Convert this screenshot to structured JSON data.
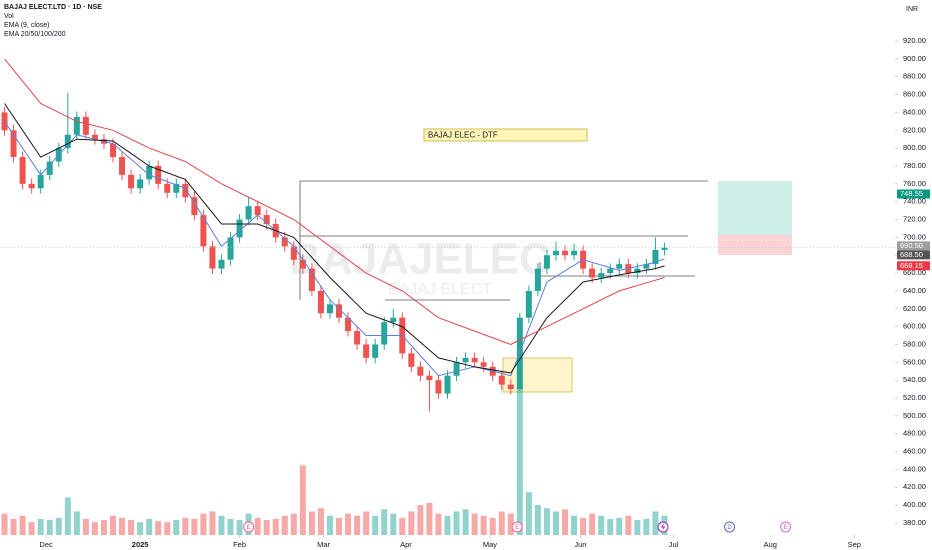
{
  "chart_data": {
    "type": "candlestick",
    "title": "BAJAJ ELECT.LTD · 1D · NSE",
    "indicators": [
      "Vol",
      "EMA (9, close)",
      "EMA 20/50/100/200"
    ],
    "currency": "INR",
    "annotation": "BAJAJ ELEC - DTF",
    "watermark": [
      "BAJAJELEC",
      "BAJAJ ELECT"
    ],
    "up_color": "#26a69a",
    "down_color": "#ef5350",
    "open": [
      840,
      820,
      790,
      760,
      755,
      770,
      785,
      800,
      815,
      835,
      815,
      810,
      805,
      790,
      770,
      755,
      765,
      780,
      760,
      750,
      760,
      745,
      725,
      690,
      665,
      675,
      700,
      720,
      735,
      725,
      715,
      700,
      690,
      675,
      665,
      640,
      615,
      625,
      610,
      595,
      580,
      565,
      580,
      605,
      610,
      570,
      555,
      545,
      540,
      525,
      545,
      560,
      565,
      560,
      555,
      545,
      535,
      530,
      610,
      640,
      665,
      680,
      685,
      680,
      685,
      665,
      655,
      660,
      665,
      670,
      660,
      665,
      670,
      686
    ],
    "high": [
      846,
      826,
      796,
      766,
      776,
      791,
      806,
      862,
      841,
      841,
      821,
      816,
      811,
      796,
      776,
      771,
      786,
      786,
      766,
      766,
      766,
      751,
      731,
      696,
      681,
      706,
      726,
      745,
      741,
      731,
      721,
      706,
      696,
      681,
      671,
      646,
      631,
      631,
      616,
      601,
      586,
      586,
      611,
      620,
      616,
      576,
      561,
      551,
      546,
      551,
      566,
      571,
      571,
      566,
      561,
      551,
      541,
      615,
      646,
      671,
      686,
      695,
      691,
      693,
      691,
      671,
      666,
      671,
      676,
      676,
      671,
      676,
      700,
      694
    ],
    "low": [
      814,
      784,
      754,
      749,
      749,
      764,
      779,
      794,
      809,
      809,
      804,
      799,
      784,
      764,
      749,
      749,
      759,
      754,
      744,
      744,
      739,
      719,
      684,
      659,
      659,
      669,
      694,
      714,
      719,
      709,
      694,
      684,
      669,
      659,
      634,
      609,
      609,
      604,
      589,
      574,
      559,
      559,
      574,
      599,
      564,
      549,
      539,
      505,
      519,
      519,
      539,
      554,
      554,
      549,
      539,
      529,
      524,
      528,
      604,
      634,
      659,
      674,
      674,
      674,
      659,
      649,
      649,
      654,
      659,
      654,
      654,
      659,
      664,
      680
    ],
    "close": [
      820,
      790,
      760,
      755,
      770,
      785,
      800,
      815,
      835,
      815,
      810,
      805,
      790,
      770,
      755,
      765,
      780,
      760,
      750,
      760,
      745,
      725,
      690,
      665,
      675,
      700,
      720,
      735,
      725,
      715,
      700,
      690,
      675,
      665,
      640,
      615,
      625,
      610,
      595,
      580,
      565,
      580,
      605,
      610,
      570,
      555,
      545,
      540,
      525,
      545,
      560,
      565,
      560,
      555,
      545,
      535,
      530,
      610,
      640,
      665,
      680,
      685,
      680,
      685,
      665,
      655,
      660,
      665,
      670,
      660,
      665,
      670,
      686,
      688.5
    ],
    "volume": [
      20,
      15,
      18,
      12,
      15,
      14,
      16,
      35,
      22,
      15,
      12,
      14,
      18,
      16,
      14,
      12,
      15,
      13,
      12,
      14,
      16,
      15,
      20,
      22,
      18,
      15,
      14,
      20,
      16,
      14,
      15,
      18,
      20,
      65,
      22,
      25,
      18,
      16,
      20,
      18,
      22,
      18,
      24,
      20,
      16,
      22,
      28,
      30,
      20,
      18,
      22,
      24,
      20,
      18,
      16,
      22,
      20,
      140,
      40,
      28,
      25,
      22,
      24,
      18,
      16,
      20,
      18,
      15,
      16,
      18,
      14,
      15,
      22,
      18
    ],
    "vlim": [
      0,
      500
    ],
    "series": [
      {
        "name": "EMA 9",
        "color": "#5b7fe0",
        "x": [
          0,
          4,
          8,
          12,
          16,
          20,
          24,
          28,
          32,
          36,
          40,
          44,
          48,
          52,
          56,
          60,
          64,
          68,
          72,
          73
        ],
        "values": [
          830,
          770,
          815,
          805,
          770,
          755,
          690,
          725,
          690,
          630,
          590,
          590,
          545,
          555,
          545,
          650,
          675,
          663,
          672,
          676
        ]
      },
      {
        "name": "EMA 20",
        "color": "#1a1a1a",
        "x": [
          0,
          4,
          8,
          12,
          16,
          20,
          24,
          28,
          32,
          36,
          40,
          44,
          48,
          52,
          56,
          60,
          64,
          68,
          72,
          73
        ],
        "values": [
          850,
          790,
          810,
          808,
          780,
          765,
          715,
          715,
          700,
          655,
          615,
          600,
          565,
          555,
          548,
          610,
          650,
          658,
          665,
          668
        ]
      },
      {
        "name": "EMA 50",
        "color": "#e0474c",
        "x": [
          0,
          4,
          8,
          12,
          16,
          20,
          24,
          28,
          32,
          36,
          40,
          44,
          48,
          52,
          56,
          60,
          64,
          68,
          72,
          73
        ],
        "values": [
          900,
          850,
          830,
          820,
          800,
          785,
          760,
          740,
          720,
          690,
          660,
          640,
          610,
          595,
          580,
          600,
          620,
          640,
          652,
          655
        ]
      }
    ],
    "price_labels": [
      {
        "value": 748.55,
        "label": "748.55",
        "color": "#089981"
      },
      {
        "value": 690.5,
        "label": "690.50",
        "color": "#9e9e9e"
      },
      {
        "value": 688.5,
        "label": "688.50",
        "color": "#555555"
      },
      {
        "value": 668.15,
        "label": "668.15",
        "color": "#f23645"
      }
    ],
    "events": [
      {
        "x": 27,
        "label": "E",
        "color": "#f06292"
      },
      {
        "x": 56.7,
        "label": "E",
        "color": "#f06292"
      },
      {
        "x": 80.2,
        "label": "D",
        "color": "#5c6bc0"
      },
      {
        "x": 86.4,
        "label": "E",
        "color": "#ce6bd6"
      }
    ],
    "xlim": [
      -0.5,
      98.5
    ],
    "xticks": [
      {
        "value": 4.6,
        "label": "Dec"
      },
      {
        "value": 15,
        "label": "2025"
      },
      {
        "value": 26,
        "label": "Feb"
      },
      {
        "value": 35.3,
        "label": "Mar"
      },
      {
        "value": 44.4,
        "label": "Apr"
      },
      {
        "value": 53.7,
        "label": "May"
      },
      {
        "value": 63.7,
        "label": "Jun"
      },
      {
        "value": 74,
        "label": "Jul"
      },
      {
        "value": 84.7,
        "label": "Aug"
      },
      {
        "value": 94,
        "label": "Sep"
      }
    ],
    "ylim": [
      366.5,
      966
    ],
    "yticks": [
      {
        "value": 380,
        "label": "380.00"
      },
      {
        "value": 400,
        "label": "400.00"
      },
      {
        "value": 420,
        "label": "420.00"
      },
      {
        "value": 440,
        "label": "440.00"
      },
      {
        "value": 460,
        "label": "460.00"
      },
      {
        "value": 480,
        "label": "480.00"
      },
      {
        "value": 500,
        "label": "500.00"
      },
      {
        "value": 520,
        "label": "520.00"
      },
      {
        "value": 540,
        "label": "540.00"
      },
      {
        "value": 560,
        "label": "560.00"
      },
      {
        "value": 580,
        "label": "580.00"
      },
      {
        "value": 600,
        "label": "600.00"
      },
      {
        "value": 620,
        "label": "620.00"
      },
      {
        "value": 640,
        "label": "640.00"
      },
      {
        "value": 660,
        "label": "660.00"
      },
      {
        "value": 680,
        "label": "680.00"
      },
      {
        "value": 700,
        "label": "700.00"
      },
      {
        "value": 720,
        "label": "720.00"
      },
      {
        "value": 740,
        "label": "740.00"
      },
      {
        "value": 760,
        "label": "760.00"
      },
      {
        "value": 780,
        "label": "780.00"
      },
      {
        "value": 800,
        "label": "800.00"
      },
      {
        "value": 820,
        "label": "820.00"
      },
      {
        "value": 840,
        "label": "840.00"
      },
      {
        "value": 860,
        "label": "860.00"
      },
      {
        "value": 880,
        "label": "880.00"
      },
      {
        "value": 900,
        "label": "900.00"
      },
      {
        "value": 920,
        "label": "920.00"
      }
    ]
  }
}
